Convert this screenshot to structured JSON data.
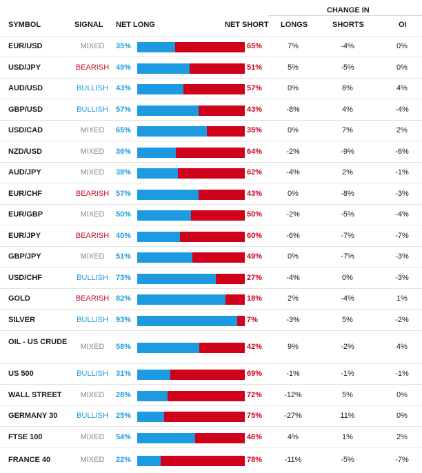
{
  "header": {
    "symbol": "SYMBOL",
    "signal": "SIGNAL",
    "net_long": "NET LONG",
    "net_short": "NET SHORT",
    "change_in": "CHANGE IN",
    "longs": "LONGS",
    "shorts": "SHORTS",
    "oi": "OI"
  },
  "colors": {
    "long_blue": "#1e9be0",
    "short_red": "#d0021b",
    "bearish_red": "#c8102e",
    "mixed_gray": "#888888"
  },
  "rows": [
    {
      "symbol": "EUR/USD",
      "signal": "MIXED",
      "net_long": "35%",
      "net_short": "65%",
      "long_fraction": 0.35,
      "longs": "7%",
      "shorts": "-4%",
      "oi": "0%"
    },
    {
      "symbol": "USD/JPY",
      "signal": "BEARISH",
      "net_long": "49%",
      "net_short": "51%",
      "long_fraction": 0.49,
      "longs": "5%",
      "shorts": "-5%",
      "oi": "0%"
    },
    {
      "symbol": "AUD/USD",
      "signal": "BULLISH",
      "net_long": "43%",
      "net_short": "57%",
      "long_fraction": 0.43,
      "longs": "0%",
      "shorts": "8%",
      "oi": "4%"
    },
    {
      "symbol": "GBP/USD",
      "signal": "BULLISH",
      "net_long": "57%",
      "net_short": "43%",
      "long_fraction": 0.57,
      "longs": "-8%",
      "shorts": "4%",
      "oi": "-4%"
    },
    {
      "symbol": "USD/CAD",
      "signal": "MIXED",
      "net_long": "65%",
      "net_short": "35%",
      "long_fraction": 0.65,
      "longs": "0%",
      "shorts": "7%",
      "oi": "2%"
    },
    {
      "symbol": "NZD/USD",
      "signal": "MIXED",
      "net_long": "36%",
      "net_short": "64%",
      "long_fraction": 0.36,
      "longs": "-2%",
      "shorts": "-9%",
      "oi": "-6%"
    },
    {
      "symbol": "AUD/JPY",
      "signal": "MIXED",
      "net_long": "38%",
      "net_short": "62%",
      "long_fraction": 0.38,
      "longs": "-4%",
      "shorts": "2%",
      "oi": "-1%"
    },
    {
      "symbol": "EUR/CHF",
      "signal": "BEARISH",
      "net_long": "57%",
      "net_short": "43%",
      "long_fraction": 0.57,
      "longs": "0%",
      "shorts": "-8%",
      "oi": "-3%"
    },
    {
      "symbol": "EUR/GBP",
      "signal": "MIXED",
      "net_long": "50%",
      "net_short": "50%",
      "long_fraction": 0.5,
      "longs": "-2%",
      "shorts": "-5%",
      "oi": "-4%"
    },
    {
      "symbol": "EUR/JPY",
      "signal": "BEARISH",
      "net_long": "40%",
      "net_short": "60%",
      "long_fraction": 0.4,
      "longs": "-6%",
      "shorts": "-7%",
      "oi": "-7%"
    },
    {
      "symbol": "GBP/JPY",
      "signal": "MIXED",
      "net_long": "51%",
      "net_short": "49%",
      "long_fraction": 0.51,
      "longs": "0%",
      "shorts": "-7%",
      "oi": "-3%"
    },
    {
      "symbol": "USD/CHF",
      "signal": "BULLISH",
      "net_long": "73%",
      "net_short": "27%",
      "long_fraction": 0.73,
      "longs": "-4%",
      "shorts": "0%",
      "oi": "-3%"
    },
    {
      "symbol": "GOLD",
      "signal": "BEARISH",
      "net_long": "82%",
      "net_short": "18%",
      "long_fraction": 0.82,
      "longs": "2%",
      "shorts": "-4%",
      "oi": "1%"
    },
    {
      "symbol": "SILVER",
      "signal": "BULLISH",
      "net_long": "93%",
      "net_short": "7%",
      "long_fraction": 0.93,
      "longs": "-3%",
      "shorts": "5%",
      "oi": "-2%"
    },
    {
      "symbol": "OIL - US CRUDE",
      "signal": "MIXED",
      "net_long": "58%",
      "net_short": "42%",
      "long_fraction": 0.58,
      "longs": "9%",
      "shorts": "-2%",
      "oi": "4%"
    },
    {
      "symbol": "US 500",
      "signal": "BULLISH",
      "net_long": "31%",
      "net_short": "69%",
      "long_fraction": 0.31,
      "longs": "-1%",
      "shorts": "-1%",
      "oi": "-1%"
    },
    {
      "symbol": "WALL STREET",
      "signal": "MIXED",
      "net_long": "28%",
      "net_short": "72%",
      "long_fraction": 0.28,
      "longs": "-12%",
      "shorts": "5%",
      "oi": "0%"
    },
    {
      "symbol": "GERMANY 30",
      "signal": "BULLISH",
      "net_long": "25%",
      "net_short": "75%",
      "long_fraction": 0.25,
      "longs": "-27%",
      "shorts": "11%",
      "oi": "0%"
    },
    {
      "symbol": "FTSE 100",
      "signal": "MIXED",
      "net_long": "54%",
      "net_short": "46%",
      "long_fraction": 0.54,
      "longs": "4%",
      "shorts": "1%",
      "oi": "2%"
    },
    {
      "symbol": "FRANCE 40",
      "signal": "MIXED",
      "net_long": "22%",
      "net_short": "78%",
      "long_fraction": 0.22,
      "longs": "-11%",
      "shorts": "-5%",
      "oi": "-7%"
    }
  ]
}
